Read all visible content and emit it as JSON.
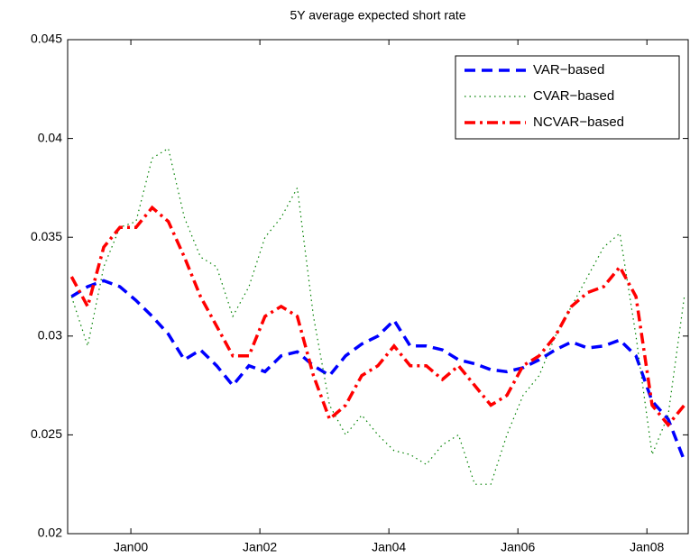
{
  "chart_data": {
    "type": "line",
    "title": "5Y average expected short rate",
    "x": [
      1999.08,
      1999.33,
      1999.58,
      1999.83,
      2000.08,
      2000.33,
      2000.58,
      2000.83,
      2001.08,
      2001.33,
      2001.58,
      2001.83,
      2002.08,
      2002.33,
      2002.58,
      2002.83,
      2003.08,
      2003.33,
      2003.58,
      2003.83,
      2004.08,
      2004.33,
      2004.58,
      2004.83,
      2005.08,
      2005.33,
      2005.58,
      2005.83,
      2006.08,
      2006.33,
      2006.58,
      2006.83,
      2007.08,
      2007.33,
      2007.58,
      2007.83,
      2008.08,
      2008.33,
      2008.58
    ],
    "series": [
      {
        "name": "VAR−based",
        "color": "#0000ff",
        "style": "dashed",
        "values": [
          0.032,
          0.0325,
          0.0328,
          0.0325,
          0.0318,
          0.031,
          0.0301,
          0.0288,
          0.0293,
          0.0285,
          0.0275,
          0.0285,
          0.0282,
          0.029,
          0.0292,
          0.0285,
          0.028,
          0.029,
          0.0296,
          0.03,
          0.0308,
          0.0295,
          0.0295,
          0.0293,
          0.0288,
          0.0286,
          0.0283,
          0.0282,
          0.0284,
          0.0288,
          0.0293,
          0.0297,
          0.0294,
          0.0295,
          0.0298,
          0.029,
          0.0267,
          0.0258,
          0.0237
        ]
      },
      {
        "name": "CVAR−based",
        "color": "#008000",
        "style": "dotted",
        "values": [
          0.032,
          0.0295,
          0.0335,
          0.0355,
          0.0358,
          0.039,
          0.0395,
          0.036,
          0.034,
          0.0335,
          0.031,
          0.0325,
          0.035,
          0.036,
          0.0375,
          0.031,
          0.0265,
          0.025,
          0.026,
          0.025,
          0.0242,
          0.024,
          0.0235,
          0.0245,
          0.025,
          0.0225,
          0.0225,
          0.025,
          0.027,
          0.028,
          0.03,
          0.0315,
          0.033,
          0.0345,
          0.0352,
          0.03,
          0.024,
          0.026,
          0.032
        ]
      },
      {
        "name": "NCVAR−based",
        "color": "#ff0000",
        "style": "dashdot",
        "values": [
          0.033,
          0.0315,
          0.0345,
          0.0355,
          0.0355,
          0.0365,
          0.0358,
          0.034,
          0.032,
          0.0305,
          0.029,
          0.029,
          0.031,
          0.0315,
          0.031,
          0.028,
          0.0258,
          0.0265,
          0.028,
          0.0285,
          0.0295,
          0.0285,
          0.0285,
          0.0278,
          0.0285,
          0.0275,
          0.0265,
          0.027,
          0.0285,
          0.029,
          0.03,
          0.0315,
          0.0322,
          0.0325,
          0.0335,
          0.032,
          0.0265,
          0.0255,
          0.0265
        ]
      }
    ],
    "xlim": [
      1999.02,
      2008.64
    ],
    "xticks": [
      {
        "value": 2000,
        "label": "Jan00"
      },
      {
        "value": 2002,
        "label": "Jan02"
      },
      {
        "value": 2004,
        "label": "Jan04"
      },
      {
        "value": 2006,
        "label": "Jan06"
      },
      {
        "value": 2008,
        "label": "Jan08"
      }
    ],
    "ylim": [
      0.02,
      0.045
    ],
    "yticks": [
      0.02,
      0.025,
      0.03,
      0.035,
      0.04,
      0.045
    ],
    "grid": false,
    "legend": "upper right"
  }
}
